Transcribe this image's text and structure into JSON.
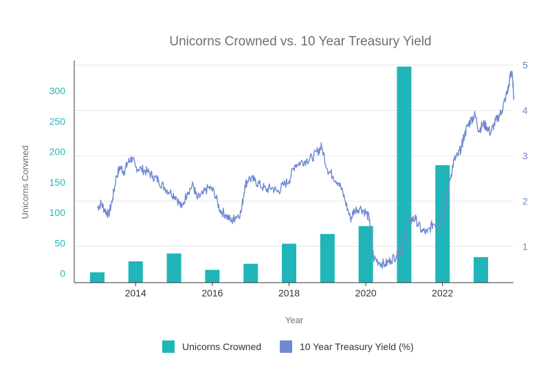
{
  "chart_data": {
    "type": "bar+line",
    "title": "Unicorns Crowned vs. 10 Year Treasury Yield",
    "xlabel": "Year",
    "ylabel_left": "Unicorns Corwned",
    "ylabel_right": "",
    "x_ticks": [
      "2014",
      "2016",
      "2018",
      "2020",
      "2022"
    ],
    "x_tick_values": [
      2014,
      2016,
      2018,
      2020,
      2022
    ],
    "xlim": [
      2012.4,
      2023.85
    ],
    "y_left_ticks": [
      "0",
      "50",
      "100",
      "150",
      "200",
      "250",
      "300"
    ],
    "y_left_tick_values": [
      0,
      50,
      100,
      150,
      200,
      250,
      300
    ],
    "ylim_left": [
      -15,
      350
    ],
    "y_right_ticks": [
      "1",
      "2",
      "3",
      "4",
      "5"
    ],
    "y_right_tick_values": [
      1,
      2,
      3,
      4,
      5
    ],
    "ylim_right": [
      0.2,
      5.1
    ],
    "series": [
      {
        "name": "Unicorns Crowned",
        "kind": "bar",
        "color": "#20b5b8",
        "x": [
          2013,
          2014,
          2015,
          2016,
          2017,
          2018,
          2019,
          2020,
          2021,
          2022,
          2023
        ],
        "values": [
          2,
          20,
          33,
          6,
          16,
          49,
          65,
          78,
          340,
          178,
          27
        ]
      },
      {
        "name": "10 Year Treasury Yield (%)",
        "kind": "line",
        "color": "#6f89cf",
        "x": [
          2013.0,
          2013.1,
          2013.2,
          2013.3,
          2013.4,
          2013.5,
          2013.6,
          2013.7,
          2013.8,
          2013.9,
          2014.0,
          2014.15,
          2014.3,
          2014.45,
          2014.6,
          2014.75,
          2014.9,
          2015.05,
          2015.2,
          2015.35,
          2015.5,
          2015.6,
          2015.75,
          2015.9,
          2016.05,
          2016.2,
          2016.35,
          2016.5,
          2016.6,
          2016.75,
          2016.85,
          2016.95,
          2017.1,
          2017.25,
          2017.4,
          2017.55,
          2017.7,
          2017.85,
          2018.0,
          2018.15,
          2018.3,
          2018.45,
          2018.6,
          2018.75,
          2018.85,
          2019.0,
          2019.15,
          2019.3,
          2019.45,
          2019.6,
          2019.7,
          2019.85,
          2020.0,
          2020.1,
          2020.2,
          2020.35,
          2020.5,
          2020.65,
          2020.8,
          2020.9,
          2021.0,
          2021.1,
          2021.2,
          2021.3,
          2021.45,
          2021.6,
          2021.75,
          2021.9,
          2022.0,
          2022.1,
          2022.2,
          2022.3,
          2022.4,
          2022.5,
          2022.55,
          2022.65,
          2022.75,
          2022.85,
          2022.95,
          2023.05,
          2023.15,
          2023.25,
          2023.35,
          2023.45,
          2023.55,
          2023.65,
          2023.72,
          2023.78,
          2023.82,
          2023.86
        ],
        "values": [
          1.85,
          1.95,
          1.8,
          1.7,
          2.05,
          2.55,
          2.75,
          2.65,
          2.85,
          2.95,
          2.75,
          2.7,
          2.65,
          2.55,
          2.45,
          2.3,
          2.2,
          2.1,
          1.85,
          2.2,
          2.35,
          2.05,
          2.15,
          2.3,
          2.2,
          1.8,
          1.7,
          1.55,
          1.65,
          1.75,
          2.35,
          2.5,
          2.45,
          2.35,
          2.25,
          2.3,
          2.2,
          2.35,
          2.45,
          2.8,
          2.85,
          2.9,
          2.95,
          3.1,
          3.2,
          2.7,
          2.55,
          2.4,
          2.05,
          1.6,
          1.8,
          1.85,
          1.75,
          1.6,
          0.75,
          0.65,
          0.6,
          0.7,
          0.8,
          0.9,
          1.1,
          1.5,
          1.6,
          1.6,
          1.35,
          1.3,
          1.5,
          1.5,
          1.65,
          2.0,
          2.5,
          2.9,
          3.0,
          3.2,
          3.4,
          3.65,
          3.8,
          3.9,
          3.55,
          3.7,
          3.65,
          3.5,
          3.7,
          3.85,
          4.0,
          4.3,
          4.5,
          4.85,
          4.75,
          4.3
        ]
      }
    ],
    "legend": [
      {
        "label": "Unicorns Crowned",
        "color": "#20b5b8"
      },
      {
        "label": "10 Year Treasury Yield (%)",
        "color": "#6f89cf"
      }
    ],
    "legend_position": "bottom",
    "grid": true
  }
}
